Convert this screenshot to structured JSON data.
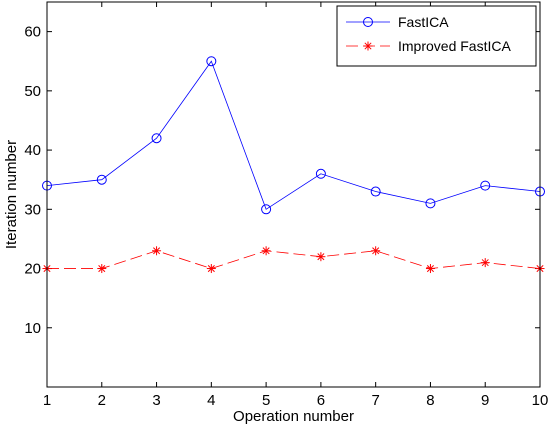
{
  "chart_data": {
    "type": "line",
    "title": "",
    "xlabel": "Operation number",
    "ylabel": "Iteration number",
    "xlim": [
      1,
      10
    ],
    "ylim": [
      0,
      65
    ],
    "xticks": [
      1,
      2,
      3,
      4,
      5,
      6,
      7,
      8,
      9,
      10
    ],
    "yticks": [
      10,
      20,
      30,
      40,
      50,
      60
    ],
    "grid": false,
    "legend_position": "top-right",
    "x": [
      1,
      2,
      3,
      4,
      5,
      6,
      7,
      8,
      9,
      10
    ],
    "series": [
      {
        "name": "FastICA",
        "values": [
          34,
          35,
          42,
          55,
          30,
          36,
          33,
          31,
          34,
          33
        ],
        "color": "#0000ff",
        "marker": "circle",
        "line_style": "solid"
      },
      {
        "name": "Improved FastICA",
        "values": [
          20,
          20,
          23,
          20,
          23,
          22,
          23,
          20,
          21,
          20
        ],
        "color": "#ff0000",
        "marker": "asterisk",
        "line_style": "dashed"
      }
    ]
  }
}
